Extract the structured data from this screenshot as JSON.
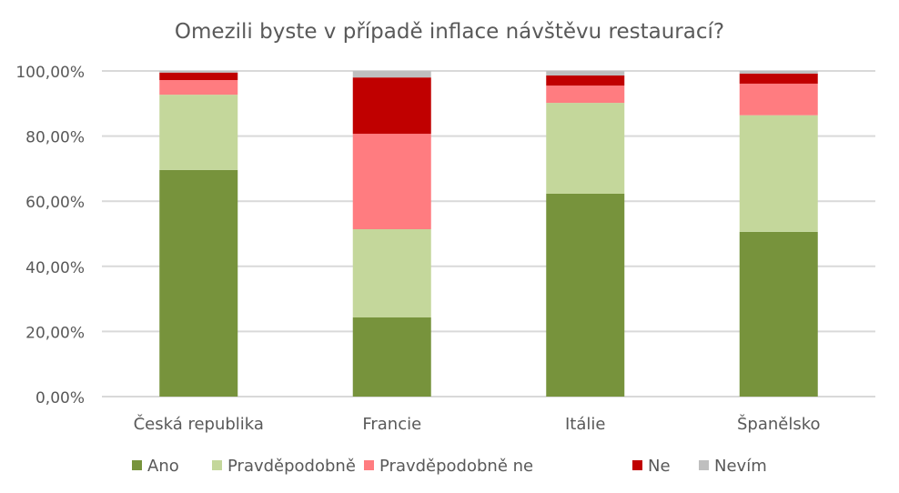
{
  "chart_data": {
    "type": "bar",
    "stacked": true,
    "title": "Omezili byste v případě inflace návštěvu restaurací?",
    "xlabel": "",
    "ylabel": "",
    "ylim": [
      0,
      100
    ],
    "yticks": [
      "0,00%",
      "20,00%",
      "40,00%",
      "60,00%",
      "80,00%",
      "100,00%"
    ],
    "grid": true,
    "legend_position": "bottom",
    "categories": [
      "Česká republika",
      "Francie",
      "Itálie",
      "Španělsko"
    ],
    "series": [
      {
        "name": "Ano",
        "color": "#77933C",
        "values": [
          69.6,
          24.3,
          62.3,
          50.6
        ]
      },
      {
        "name": "Pravděpodobně",
        "color": "#C4D79B",
        "values": [
          23.1,
          27.1,
          27.9,
          35.8
        ]
      },
      {
        "name": "Pravděpodobně ne",
        "color": "#FF7C80",
        "values": [
          4.5,
          29.3,
          5.3,
          9.7
        ]
      },
      {
        "name": "Ne",
        "color": "#C00000",
        "values": [
          2.3,
          17.3,
          3.1,
          3.1
        ]
      },
      {
        "name": "Nevím",
        "color": "#BFBFBF",
        "values": [
          0.5,
          2.0,
          1.4,
          0.8
        ]
      }
    ]
  }
}
